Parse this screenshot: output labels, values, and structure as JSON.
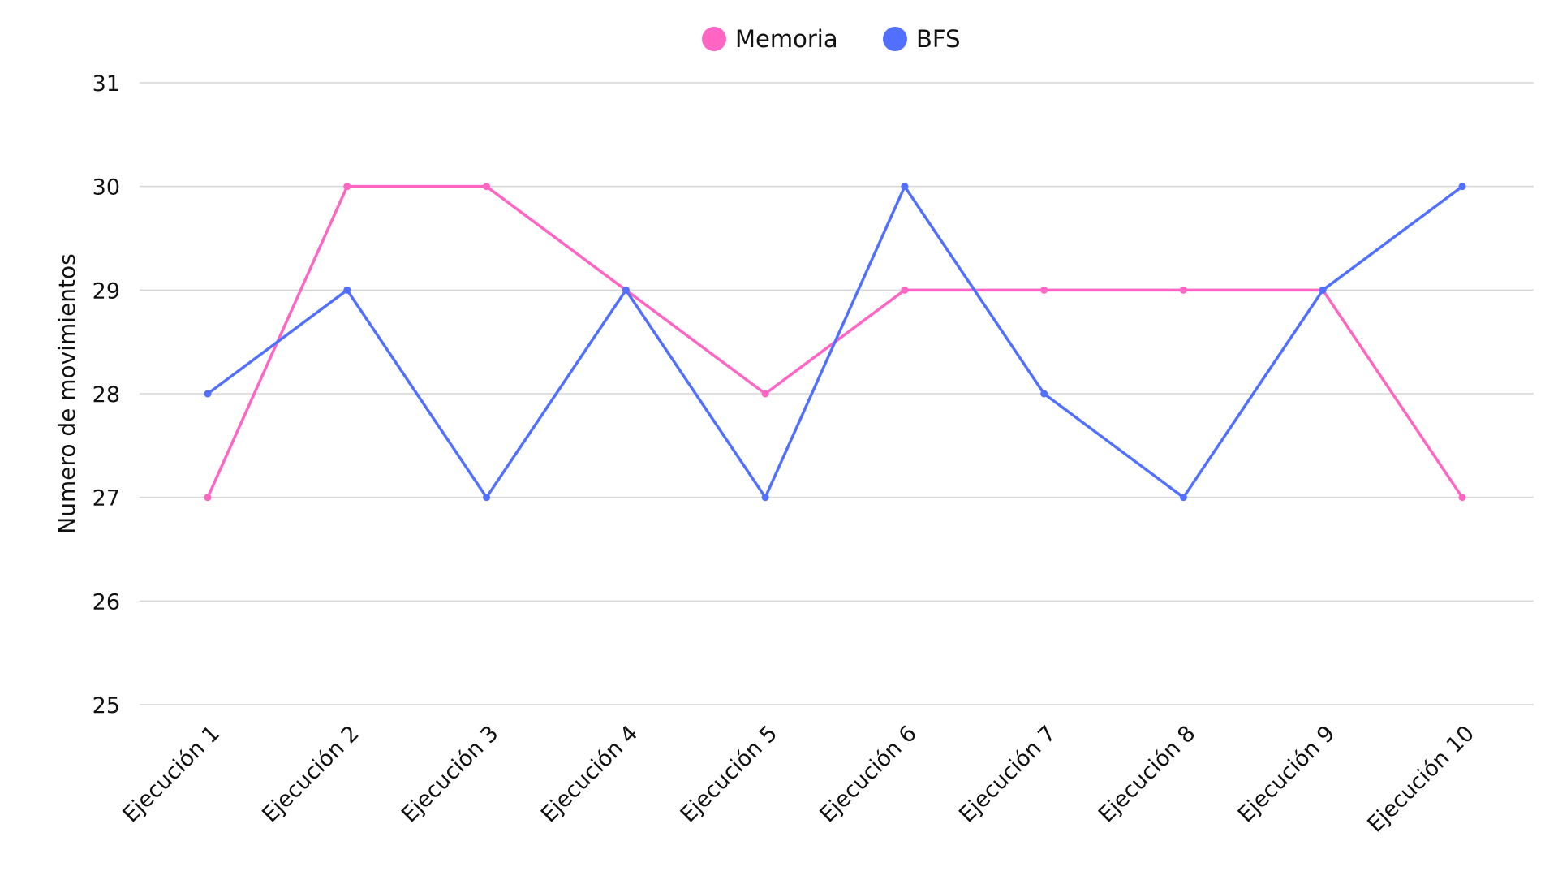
{
  "chart_data": {
    "type": "line",
    "title": "",
    "xlabel": "",
    "ylabel": "Numero de movimientos",
    "categories": [
      "Ejecución 1",
      "Ejecución 2",
      "Ejecución 3",
      "Ejecución 4",
      "Ejecución 5",
      "Ejecución 6",
      "Ejecución 7",
      "Ejecución 8",
      "Ejecución 9",
      "Ejecución 10"
    ],
    "ylim": [
      25,
      31
    ],
    "yticks": [
      "25",
      "26",
      "27",
      "28",
      "29",
      "30",
      "31"
    ],
    "grid": true,
    "legend_position": "top-center",
    "series": [
      {
        "name": "Memoria",
        "color": "#ff66c4",
        "values": [
          27,
          30,
          30,
          29,
          28,
          29,
          29,
          29,
          29,
          27
        ]
      },
      {
        "name": "BFS",
        "color": "#5170ff",
        "values": [
          28,
          29,
          27,
          29,
          27,
          30,
          28,
          27,
          29,
          30
        ]
      }
    ]
  }
}
